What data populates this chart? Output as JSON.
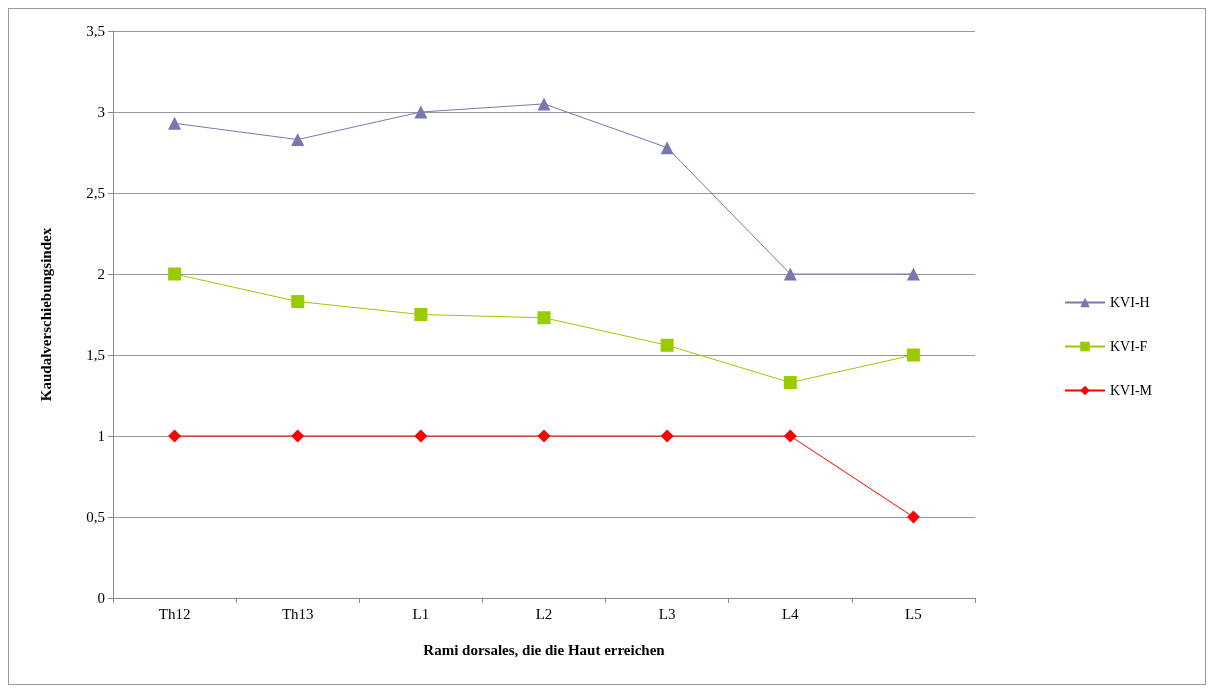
{
  "chart_data": {
    "type": "line",
    "xlabel": "Rami dorsales, die die Haut erreichen",
    "ylabel": "Kaudalverschiebungsindex",
    "categories": [
      "Th12",
      "Th13",
      "L1",
      "L2",
      "L3",
      "L4",
      "L5"
    ],
    "series": [
      {
        "name": "KVI-H",
        "color": "#7878b0",
        "marker": "triangle",
        "values": [
          2.93,
          2.83,
          3.0,
          3.05,
          2.78,
          2.0,
          2.0
        ]
      },
      {
        "name": "KVI-F",
        "color": "#99cc00",
        "marker": "square",
        "values": [
          2.0,
          1.83,
          1.75,
          1.73,
          1.56,
          1.33,
          1.5
        ]
      },
      {
        "name": "KVI-M",
        "color": "#ff0000",
        "marker": "diamond",
        "values": [
          1,
          1,
          1,
          1,
          1,
          1,
          0.5
        ]
      }
    ],
    "ylim": [
      0,
      3.5
    ],
    "yticks": [
      0,
      {
        "value": 0.5,
        "label": "0,5"
      },
      1,
      {
        "value": 1.5,
        "label": "1,5"
      },
      2,
      {
        "value": 2.5,
        "label": "2,5"
      },
      3,
      {
        "value": 3.5,
        "label": "3,5"
      }
    ],
    "grid": "y",
    "legend": "right",
    "line_style": "solid"
  }
}
